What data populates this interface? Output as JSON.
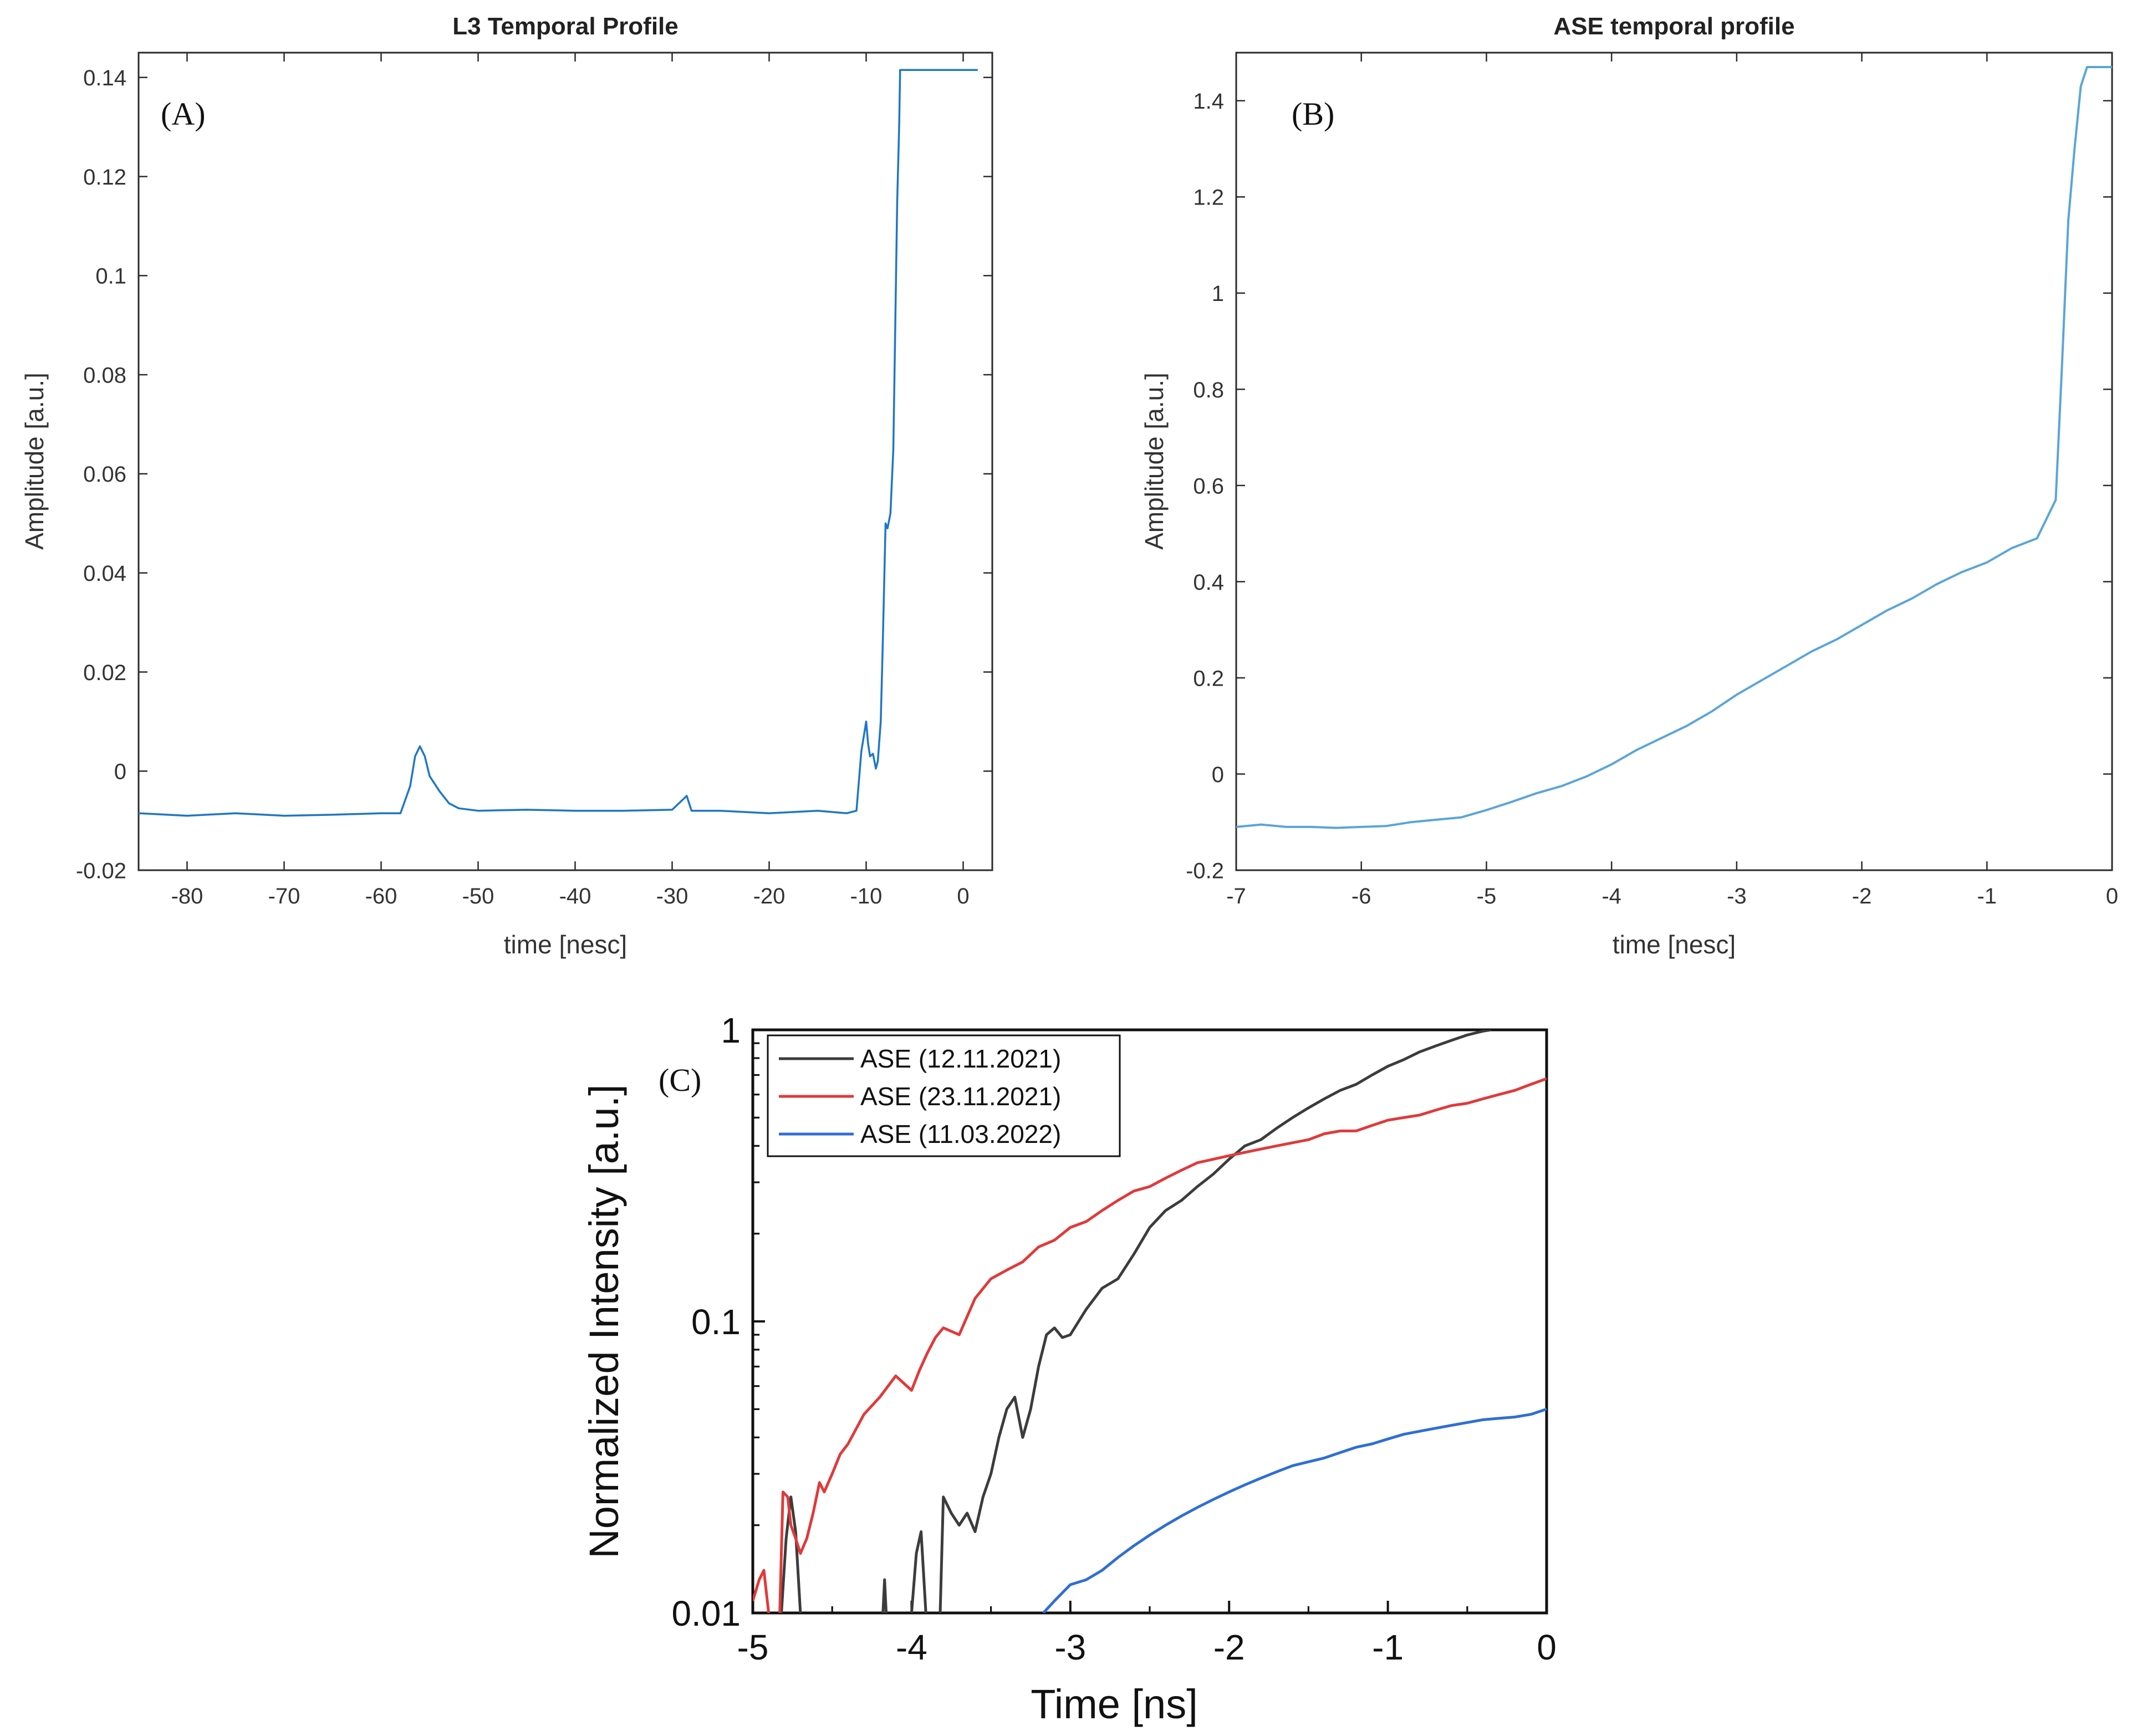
{
  "chart_data": [
    {
      "panel": "(A)",
      "type": "line",
      "title": "L3 Temporal Profile",
      "xlabel": "time [nesc]",
      "ylabel": "Amplitude [a.u.]",
      "xlim": [
        -85,
        3
      ],
      "ylim": [
        -0.02,
        0.145
      ],
      "xticks": [
        -80,
        -70,
        -60,
        -50,
        -40,
        -30,
        -20,
        -10,
        0
      ],
      "yticks": [
        -0.02,
        0,
        0.02,
        0.04,
        0.06,
        0.08,
        0.1,
        0.12,
        0.14
      ],
      "ytick_labels": [
        "-0.02",
        "0",
        "0.02",
        "0.04",
        "0.06",
        "0.08",
        "0.1",
        "0.12",
        "0.14"
      ],
      "grid": false,
      "color": "#1f77c4",
      "series": [
        {
          "x": [
            -85,
            -80,
            -75,
            -70,
            -65,
            -60,
            -58,
            -57,
            -56.5,
            -56,
            -55.5,
            -55,
            -54,
            -53,
            -52,
            -50,
            -45,
            -40,
            -35,
            -30,
            -28.5,
            -28,
            -25,
            -20,
            -15,
            -12,
            -11,
            -10.5,
            -10,
            -9.8,
            -9.6,
            -9.3,
            -9,
            -8.8,
            -8.5,
            -8.3,
            -8,
            -7.8,
            -7.5,
            -7.2,
            -7,
            -6.8,
            -6.6,
            -6.5,
            -6.2,
            -5,
            -3,
            0,
            1.5
          ],
          "y": [
            -0.0085,
            -0.009,
            -0.0085,
            -0.009,
            -0.0088,
            -0.0085,
            -0.0085,
            -0.003,
            0.003,
            0.005,
            0.003,
            -0.001,
            -0.004,
            -0.0065,
            -0.0075,
            -0.008,
            -0.0078,
            -0.008,
            -0.008,
            -0.0078,
            -0.005,
            -0.008,
            -0.008,
            -0.0085,
            -0.008,
            -0.0085,
            -0.008,
            0.004,
            0.01,
            0.0055,
            0.003,
            0.0035,
            0.0005,
            0.002,
            0.01,
            0.025,
            0.05,
            0.049,
            0.052,
            0.065,
            0.09,
            0.115,
            0.13,
            0.1415,
            0.1415,
            0.1415,
            0.1415,
            0.1415,
            0.1415
          ]
        }
      ]
    },
    {
      "panel": "(B)",
      "type": "line",
      "title": "ASE temporal profile",
      "xlabel": "time [nesc]",
      "ylabel": "Amplitude [a.u.]",
      "xlim": [
        -7,
        0
      ],
      "ylim": [
        -0.2,
        1.5
      ],
      "xticks": [
        -7,
        -6,
        -5,
        -4,
        -3,
        -2,
        -1,
        0
      ],
      "yticks": [
        -0.2,
        0,
        0.2,
        0.4,
        0.6,
        0.8,
        1,
        1.2,
        1.4
      ],
      "ytick_labels": [
        "-0.2",
        "0",
        "0.2",
        "0.4",
        "0.6",
        "0.8",
        "1",
        "1.2",
        "1.4"
      ],
      "grid": false,
      "color": "#5aa5d8",
      "series": [
        {
          "x": [
            -7,
            -6.8,
            -6.6,
            -6.4,
            -6.2,
            -6,
            -5.8,
            -5.6,
            -5.4,
            -5.2,
            -5,
            -4.8,
            -4.6,
            -4.4,
            -4.2,
            -4,
            -3.8,
            -3.6,
            -3.4,
            -3.2,
            -3,
            -2.8,
            -2.6,
            -2.4,
            -2.2,
            -2,
            -1.8,
            -1.6,
            -1.4,
            -1.2,
            -1,
            -0.8,
            -0.6,
            -0.45,
            -0.4,
            -0.35,
            -0.3,
            -0.25,
            -0.2,
            -0.1,
            0
          ],
          "y": [
            -0.11,
            -0.105,
            -0.11,
            -0.11,
            -0.112,
            -0.11,
            -0.108,
            -0.1,
            -0.095,
            -0.09,
            -0.075,
            -0.058,
            -0.04,
            -0.025,
            -0.005,
            0.02,
            0.05,
            0.075,
            0.1,
            0.13,
            0.165,
            0.195,
            0.225,
            0.255,
            0.28,
            0.31,
            0.34,
            0.365,
            0.395,
            0.42,
            0.44,
            0.47,
            0.49,
            0.57,
            0.85,
            1.15,
            1.3,
            1.43,
            1.47,
            1.47,
            1.47
          ]
        }
      ]
    },
    {
      "panel": "(C)",
      "type": "line",
      "xlabel": "Time [ns]",
      "ylabel": "Normalized Intensity [a.u.]",
      "xlim": [
        -5,
        0
      ],
      "ylim": [
        0.01,
        1
      ],
      "yscale": "log",
      "xticks": [
        -5,
        -4,
        -3,
        -2,
        -1,
        0
      ],
      "yticks": [
        0.01,
        0.1,
        1
      ],
      "ytick_labels": [
        "0.01",
        "0.1",
        "1"
      ],
      "grid": false,
      "legend": "top-left",
      "series": [
        {
          "name": "ASE (12.11.2021)",
          "color": "#3c3c3c",
          "segments": [
            {
              "x": [
                -4.82,
                -4.79,
                -4.76,
                -4.73,
                -4.7
              ],
              "y": [
                0.01,
                0.018,
                0.025,
                0.019,
                0.01
              ]
            },
            {
              "x": [
                -4.18,
                -4.17,
                -4.16
              ],
              "y": [
                0.01,
                0.013,
                0.01
              ]
            },
            {
              "x": [
                -4.0,
                -3.97,
                -3.94,
                -3.91
              ],
              "y": [
                0.01,
                0.016,
                0.019,
                0.01
              ]
            },
            {
              "x": [
                -3.82,
                -3.8,
                -3.75,
                -3.7,
                -3.65,
                -3.6,
                -3.55,
                -3.5,
                -3.45,
                -3.4,
                -3.35,
                -3.3,
                -3.25,
                -3.2,
                -3.15,
                -3.1,
                -3.05,
                -3.0,
                -2.9,
                -2.8,
                -2.7,
                -2.6,
                -2.5,
                -2.4,
                -2.3,
                -2.2,
                -2.1,
                -2.0,
                -1.9,
                -1.8,
                -1.7,
                -1.6,
                -1.5,
                -1.4,
                -1.3,
                -1.2,
                -1.1,
                -1.0,
                -0.9,
                -0.8,
                -0.7,
                -0.6,
                -0.5,
                -0.4,
                -0.35
              ],
              "y": [
                0.01,
                0.025,
                0.022,
                0.02,
                0.022,
                0.019,
                0.025,
                0.03,
                0.04,
                0.05,
                0.055,
                0.04,
                0.05,
                0.07,
                0.09,
                0.095,
                0.088,
                0.09,
                0.11,
                0.13,
                0.14,
                0.17,
                0.21,
                0.24,
                0.26,
                0.29,
                0.32,
                0.36,
                0.4,
                0.42,
                0.46,
                0.5,
                0.54,
                0.58,
                0.62,
                0.65,
                0.7,
                0.75,
                0.79,
                0.84,
                0.88,
                0.92,
                0.96,
                0.99,
                1.0
              ]
            }
          ]
        },
        {
          "name": "ASE (23.11.2021)",
          "color": "#e03a3a",
          "segments": [
            {
              "x": [
                -5,
                -4.96,
                -4.93,
                -4.9
              ],
              "y": [
                0.011,
                0.013,
                0.014,
                0.01
              ]
            },
            {
              "x": [
                -4.83,
                -4.81,
                -4.78,
                -4.76,
                -4.73,
                -4.7,
                -4.66,
                -4.62,
                -4.58,
                -4.55,
                -4.5,
                -4.45,
                -4.4,
                -4.3,
                -4.2,
                -4.1,
                -4.0,
                -3.95,
                -3.9,
                -3.85,
                -3.8,
                -3.7,
                -3.6,
                -3.5,
                -3.4,
                -3.3,
                -3.2,
                -3.1,
                -3.0,
                -2.9,
                -2.8,
                -2.7,
                -2.6,
                -2.5,
                -2.4,
                -2.3,
                -2.2,
                -2.1,
                -2.0,
                -1.9,
                -1.8,
                -1.7,
                -1.6,
                -1.5,
                -1.4,
                -1.3,
                -1.2,
                -1.1,
                -1.0,
                -0.9,
                -0.8,
                -0.7,
                -0.6,
                -0.5,
                -0.4,
                -0.3,
                -0.2,
                -0.1,
                0
              ],
              "y": [
                0.01,
                0.026,
                0.025,
                0.02,
                0.018,
                0.016,
                0.018,
                0.022,
                0.028,
                0.026,
                0.03,
                0.035,
                0.038,
                0.048,
                0.055,
                0.065,
                0.058,
                0.068,
                0.078,
                0.088,
                0.095,
                0.09,
                0.12,
                0.14,
                0.15,
                0.16,
                0.18,
                0.19,
                0.21,
                0.22,
                0.24,
                0.26,
                0.28,
                0.29,
                0.31,
                0.33,
                0.35,
                0.36,
                0.37,
                0.38,
                0.39,
                0.4,
                0.41,
                0.42,
                0.44,
                0.45,
                0.45,
                0.47,
                0.49,
                0.5,
                0.51,
                0.53,
                0.55,
                0.56,
                0.58,
                0.6,
                0.62,
                0.65,
                0.68
              ]
            }
          ]
        },
        {
          "name": "ASE (11.03.2022)",
          "color": "#2f6fd4",
          "segments": [
            {
              "x": [
                -3.17,
                -3.1,
                -3.0,
                -2.9,
                -2.8,
                -2.7,
                -2.6,
                -2.5,
                -2.4,
                -2.3,
                -2.2,
                -2.1,
                -2.0,
                -1.9,
                -1.8,
                -1.7,
                -1.6,
                -1.5,
                -1.4,
                -1.3,
                -1.2,
                -1.1,
                -1.0,
                -0.9,
                -0.8,
                -0.7,
                -0.6,
                -0.5,
                -0.4,
                -0.3,
                -0.2,
                -0.1,
                0
              ],
              "y": [
                0.01,
                0.011,
                0.0125,
                0.013,
                0.014,
                0.0155,
                0.017,
                0.0185,
                0.02,
                0.0215,
                0.023,
                0.0245,
                0.026,
                0.0275,
                0.029,
                0.0305,
                0.032,
                0.033,
                0.034,
                0.0355,
                0.037,
                0.038,
                0.0395,
                0.041,
                0.042,
                0.043,
                0.044,
                0.045,
                0.046,
                0.0465,
                0.047,
                0.048,
                0.05
              ]
            }
          ]
        }
      ]
    }
  ]
}
